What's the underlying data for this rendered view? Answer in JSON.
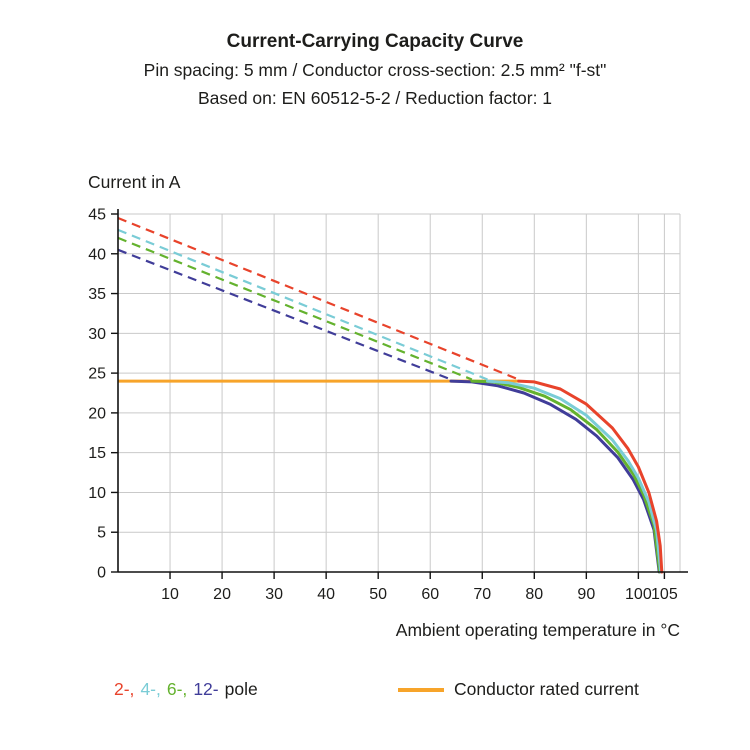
{
  "title": "Current-Carrying Capacity Curve",
  "subtitle_line1": "Pin spacing: 5 mm / Conductor cross-section: 2.5 mm² \"f-st\"",
  "subtitle_line2": "Based on: EN 60512-5-2 / Reduction factor: 1",
  "ylabel": "Current in A",
  "xlabel": "Ambient operating temperature in °C",
  "legend": {
    "poles": [
      {
        "label": "2-,",
        "color": "#e8432b"
      },
      {
        "label": "4-,",
        "color": "#7accd6"
      },
      {
        "label": "6-,",
        "color": "#64b22e"
      },
      {
        "label": "12-",
        "color": "#403d99"
      }
    ],
    "poles_suffix": "pole",
    "rated": {
      "label": "Conductor rated current",
      "color": "#f7a42a"
    }
  },
  "chart_data": {
    "type": "line",
    "title": "Current-Carrying Capacity Curve",
    "xlabel": "Ambient operating temperature in °C",
    "ylabel": "Current in A",
    "xlim": [
      0,
      108
    ],
    "ylim": [
      0,
      45
    ],
    "xticks": [
      10,
      20,
      30,
      40,
      50,
      60,
      70,
      80,
      90,
      100,
      105
    ],
    "yticks": [
      0,
      5,
      10,
      15,
      20,
      25,
      30,
      35,
      40,
      45
    ],
    "grid": true,
    "rated_current_a": 24,
    "rated_line": {
      "name": "Conductor rated current",
      "color": "#f7a42a",
      "points": [
        [
          0,
          24
        ],
        [
          77,
          24
        ]
      ]
    },
    "series": [
      {
        "name": "12-pole",
        "color": "#403d99",
        "dashed": [
          [
            0,
            40.5
          ],
          [
            64,
            24.2
          ]
        ],
        "solid": [
          [
            64,
            24
          ],
          [
            68,
            23.9
          ],
          [
            73,
            23.4
          ],
          [
            78,
            22.5
          ],
          [
            83,
            21.1
          ],
          [
            88,
            19.2
          ],
          [
            92,
            17.1
          ],
          [
            96,
            14.4
          ],
          [
            99,
            11.6
          ],
          [
            101,
            9.1
          ],
          [
            103,
            5.3
          ],
          [
            104,
            0
          ]
        ]
      },
      {
        "name": "6-pole",
        "color": "#64b22e",
        "dashed": [
          [
            0,
            42.0
          ],
          [
            68,
            24.2
          ]
        ],
        "solid": [
          [
            68,
            24
          ],
          [
            72,
            23.9
          ],
          [
            77,
            23.2
          ],
          [
            82,
            22.1
          ],
          [
            87,
            20.4
          ],
          [
            92,
            17.9
          ],
          [
            96,
            15.1
          ],
          [
            99,
            12.3
          ],
          [
            101,
            9.7
          ],
          [
            103,
            5.9
          ],
          [
            104.1,
            0
          ]
        ]
      },
      {
        "name": "4-pole",
        "color": "#7accd6",
        "dashed": [
          [
            0,
            43.0
          ],
          [
            71,
            24.2
          ]
        ],
        "solid": [
          [
            71,
            24
          ],
          [
            75,
            23.8
          ],
          [
            80,
            23.1
          ],
          [
            85,
            21.8
          ],
          [
            90,
            19.7
          ],
          [
            95,
            16.6
          ],
          [
            98,
            14.0
          ],
          [
            100,
            11.8
          ],
          [
            102,
            8.8
          ],
          [
            103.5,
            5.2
          ],
          [
            104.3,
            0
          ]
        ]
      },
      {
        "name": "2-pole",
        "color": "#e8432b",
        "dashed": [
          [
            0,
            44.5
          ],
          [
            77,
            24.2
          ]
        ],
        "solid": [
          [
            77,
            24
          ],
          [
            80,
            23.9
          ],
          [
            85,
            23.0
          ],
          [
            90,
            21.1
          ],
          [
            95,
            18.1
          ],
          [
            98,
            15.5
          ],
          [
            100,
            13.2
          ],
          [
            102,
            10.0
          ],
          [
            103.5,
            6.4
          ],
          [
            104.2,
            3.3
          ],
          [
            104.5,
            0
          ]
        ]
      }
    ]
  }
}
